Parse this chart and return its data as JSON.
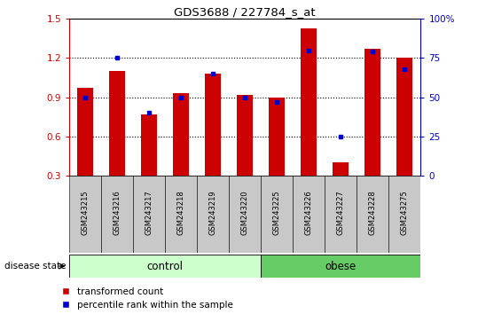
{
  "title": "GDS3688 / 227784_s_at",
  "samples": [
    "GSM243215",
    "GSM243216",
    "GSM243217",
    "GSM243218",
    "GSM243219",
    "GSM243220",
    "GSM243225",
    "GSM243226",
    "GSM243227",
    "GSM243228",
    "GSM243275"
  ],
  "red_values": [
    0.97,
    1.1,
    0.77,
    0.93,
    1.08,
    0.92,
    0.9,
    1.43,
    0.4,
    1.27,
    1.2
  ],
  "blue_percentile": [
    50,
    75,
    40,
    50,
    65,
    50,
    47,
    80,
    25,
    79,
    68
  ],
  "ylim_left": [
    0.3,
    1.5
  ],
  "ylim_right": [
    0,
    100
  ],
  "yticks_left": [
    0.3,
    0.6,
    0.9,
    1.2,
    1.5
  ],
  "yticks_right": [
    0,
    25,
    50,
    75,
    100
  ],
  "ytick_right_labels": [
    "0",
    "25",
    "50",
    "75",
    "100%"
  ],
  "control_indices": [
    0,
    1,
    2,
    3,
    4,
    5
  ],
  "obese_indices": [
    6,
    7,
    8,
    9,
    10
  ],
  "control_color": "#ccffcc",
  "obese_color": "#66cc66",
  "bar_color": "#cc0000",
  "dot_color": "#0000cc",
  "tick_bg_color": "#c8c8c8",
  "left_axis_color": "#cc0000",
  "right_axis_color": "#0000cc",
  "legend_labels": [
    "transformed count",
    "percentile rank within the sample"
  ],
  "disease_state_label": "disease state",
  "control_label": "control",
  "obese_label": "obese"
}
